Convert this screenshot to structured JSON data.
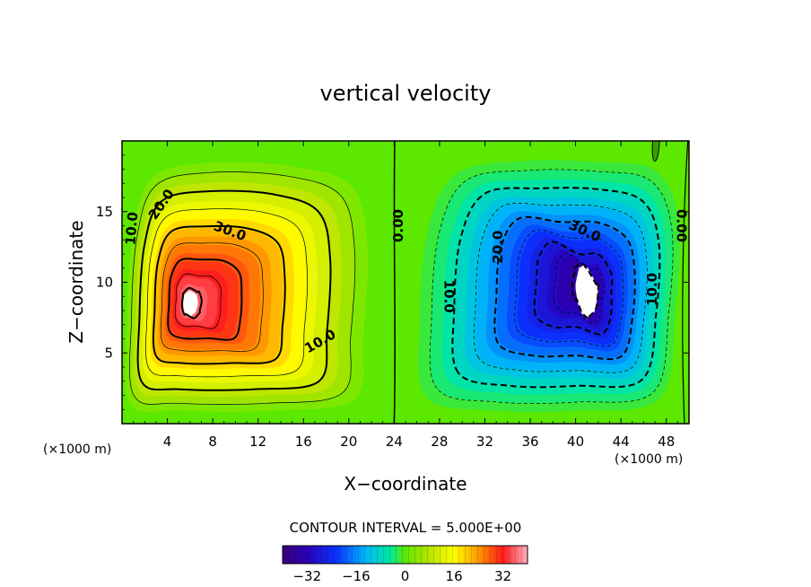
{
  "chart_data": {
    "type": "heatmap",
    "title": "vertical velocity",
    "xlabel": "X−coordinate",
    "ylabel": "Z−coordinate",
    "x_unit_left": "(×1000 m)",
    "x_unit_right": "(×1000 m)",
    "xlim": [
      0,
      50
    ],
    "ylim": [
      0,
      20
    ],
    "x_ticks": [
      4,
      8,
      12,
      16,
      20,
      24,
      28,
      32,
      36,
      40,
      44,
      48
    ],
    "y_ticks": [
      5,
      10,
      15
    ],
    "contour_interval_text": "CONTOUR INTERVAL = 5.000E+00",
    "contour_interval": 5.0,
    "colorbar": {
      "min": -40,
      "max": 40,
      "ticks": [
        -32,
        -16,
        0,
        16,
        32
      ],
      "tick_labels": [
        "−32",
        "−16",
        "0",
        "16",
        "32"
      ]
    },
    "cells": [
      {
        "name": "updraft",
        "center_x": 6,
        "center_z": 8.5,
        "peak": 41,
        "sign": "positive"
      },
      {
        "name": "downdraft",
        "center_x": 41,
        "center_z": 9.5,
        "peak": -41,
        "sign": "negative"
      }
    ],
    "contour_labels": [
      {
        "text": "10.0",
        "x": 0.9,
        "z": 13.8,
        "angle": -85
      },
      {
        "text": "20.0",
        "x": 3.5,
        "z": 15.5,
        "angle": -55
      },
      {
        "text": "30.0",
        "x": 9.5,
        "z": 13.6,
        "angle": 20
      },
      {
        "text": "10.0",
        "x": 17.5,
        "z": 5.8,
        "angle": -30
      },
      {
        "text": "0.00",
        "x": 24.4,
        "z": 14.0,
        "angle": -90
      },
      {
        "text": "20.0",
        "x": 33.2,
        "z": 12.5,
        "angle": -90
      },
      {
        "text": "30.0",
        "x": 40.8,
        "z": 13.6,
        "angle": 25
      },
      {
        "text": "10.0",
        "x": 28.8,
        "z": 9.0,
        "angle": 90
      },
      {
        "text": "10.0",
        "x": 46.8,
        "z": 9.5,
        "angle": -90
      },
      {
        "text": "0.00",
        "x": 49.3,
        "z": 14.0,
        "angle": 90
      }
    ]
  }
}
